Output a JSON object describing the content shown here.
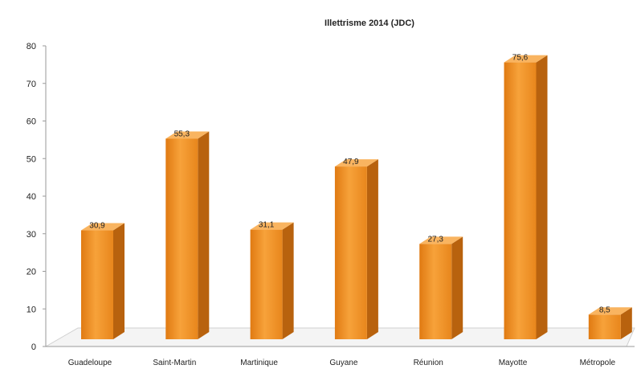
{
  "chart_data": {
    "type": "bar",
    "title": "Illettrisme 2014 (JDC)",
    "xlabel": "",
    "ylabel": "",
    "categories": [
      "Guadeloupe",
      "Saint-Martin",
      "Martinique",
      "Guyane",
      "Réunion",
      "Mayotte",
      "Métropole"
    ],
    "values": [
      30.9,
      55.3,
      31.1,
      47.9,
      27.3,
      75.6,
      8.5
    ],
    "data_labels": [
      "30,9",
      "55,3",
      "31,1",
      "47,9",
      "27,3",
      "75,6",
      "8,5"
    ],
    "ylim": [
      0,
      80
    ],
    "yticks": [
      0,
      10,
      20,
      30,
      40,
      50,
      60,
      70,
      80
    ],
    "grid": false,
    "legend": "none",
    "style": "3d",
    "colors": {
      "bar_front": "#f08a1e",
      "bar_front_light": "#f7a63a",
      "bar_side": "#b8620e",
      "bar_top": "#f9b460"
    }
  }
}
